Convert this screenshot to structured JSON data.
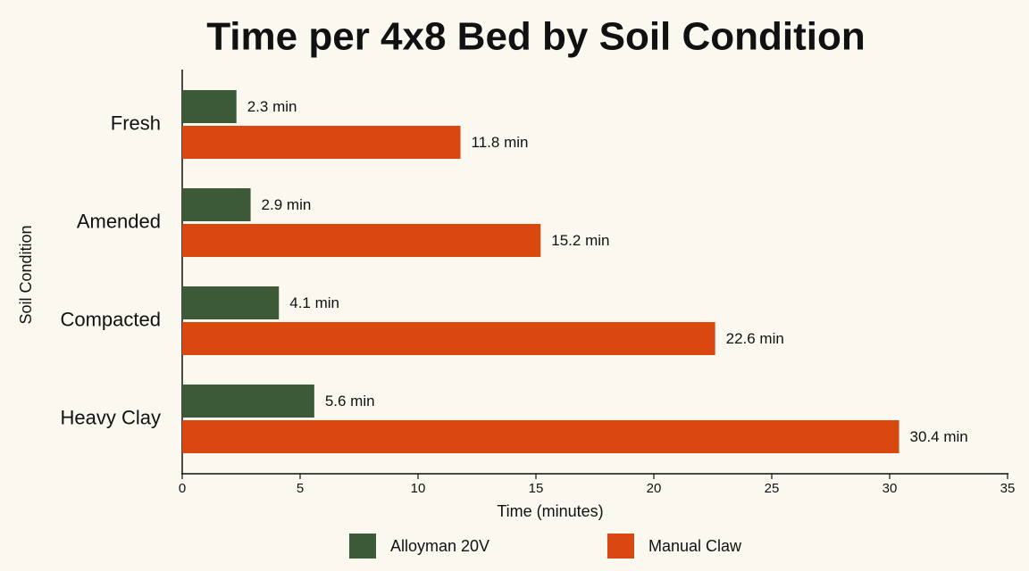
{
  "chart_data": {
    "type": "bar",
    "orientation": "horizontal",
    "title": "Time per 4x8 Bed by Soil Condition",
    "xlabel": "Time (minutes)",
    "ylabel": "Soil Condition",
    "categories": [
      "Fresh",
      "Amended",
      "Compacted",
      "Heavy Clay"
    ],
    "series": [
      {
        "name": "Alloyman 20V",
        "color": "#3d5a38",
        "values": [
          2.3,
          2.9,
          4.1,
          5.6
        ],
        "value_labels": [
          "2.3 min",
          "2.9 min",
          "4.1 min",
          "5.6 min"
        ]
      },
      {
        "name": "Manual Claw",
        "color": "#d9480f",
        "values": [
          11.8,
          15.2,
          22.6,
          30.4
        ],
        "value_labels": [
          "11.8 min",
          "15.2 min",
          "22.6 min",
          "30.4 min"
        ]
      }
    ],
    "xlim": [
      0,
      35
    ],
    "xticks": [
      0,
      5,
      10,
      15,
      20,
      25,
      30,
      35
    ],
    "grid": false,
    "legend": "bottom"
  }
}
